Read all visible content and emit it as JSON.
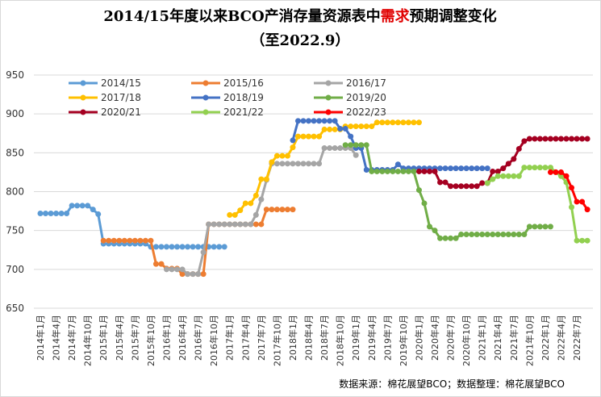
{
  "chart_data": {
    "type": "line",
    "title": {
      "before": "2014/15年度以来BCO产消存量资源表中",
      "highlight": "需求",
      "after": "预期调整变化"
    },
    "subtitle": "（至2022.9）",
    "source": "数据来源：棉花展望BCO；数据整理：棉花展望BCO",
    "highlight_color": "#e00000",
    "grid": true,
    "ylim": [
      650,
      950
    ],
    "yticks": [
      650,
      700,
      750,
      800,
      850,
      900,
      950
    ],
    "categories": [
      "2014年1月",
      null,
      null,
      "2014年4月",
      null,
      null,
      "2014年7月",
      null,
      null,
      "2014年10月",
      null,
      null,
      "2015年1月",
      null,
      null,
      "2015年4月",
      null,
      null,
      "2015年7月",
      null,
      null,
      "2015年10月",
      null,
      null,
      "2016年1月",
      null,
      null,
      "2016年4月",
      null,
      null,
      "2016年7月",
      null,
      null,
      "2016年10月",
      null,
      null,
      "2017年1月",
      null,
      null,
      "2017年4月",
      null,
      null,
      "2017年7月",
      null,
      null,
      "2017年10月",
      null,
      null,
      "2018年1月",
      null,
      null,
      "2018年4月",
      null,
      null,
      "2018年7月",
      null,
      null,
      "2018年10月",
      null,
      null,
      "2019年1月",
      null,
      null,
      "2019年4月",
      null,
      null,
      "2019年7月",
      null,
      null,
      "2019年10月",
      null,
      null,
      "2020年1月",
      null,
      null,
      "2020年4月",
      null,
      null,
      "2020年7月",
      null,
      null,
      "2020年10月",
      null,
      null,
      "2021年1月",
      null,
      null,
      "2021年4月",
      null,
      null,
      "2021年7月",
      null,
      null,
      "2021年10月",
      null,
      null,
      "2022年1月",
      null,
      null,
      "2022年4月",
      null,
      null,
      "2022年7月",
      null,
      null
    ],
    "series": [
      {
        "name": "2014/15",
        "color": "#5b9bd5",
        "values": [
          772,
          772,
          772,
          772,
          772,
          772,
          782,
          782,
          782,
          782,
          777,
          771,
          733,
          733,
          733,
          733,
          733,
          733,
          733,
          733,
          733,
          729,
          729,
          729,
          729,
          729,
          729,
          729,
          729,
          729,
          729,
          729,
          729,
          729,
          729,
          729,
          null,
          null,
          null,
          null,
          null,
          null,
          null,
          null,
          null,
          null,
          null,
          null,
          null,
          null,
          null,
          null,
          null,
          null,
          null,
          null,
          null,
          null,
          null,
          null,
          null,
          null,
          null,
          null,
          null,
          null,
          null,
          null,
          null,
          null,
          null,
          null,
          null,
          null,
          null,
          null,
          null,
          null,
          null,
          null,
          null,
          null,
          null,
          null,
          null,
          null,
          null,
          null,
          null,
          null,
          null,
          null,
          null,
          null,
          null,
          null,
          null,
          null,
          null,
          null,
          null,
          null,
          null,
          null,
          null
        ]
      },
      {
        "name": "2015/16",
        "color": "#ed7d31",
        "values": [
          null,
          null,
          null,
          null,
          null,
          null,
          null,
          null,
          null,
          null,
          null,
          null,
          737,
          737,
          737,
          737,
          737,
          737,
          737,
          737,
          737,
          737,
          707,
          707,
          701,
          701,
          701,
          694,
          694,
          694,
          694,
          694,
          758,
          758,
          758,
          758,
          758,
          758,
          758,
          758,
          758,
          758,
          758,
          777,
          777,
          777,
          777,
          777,
          777,
          null,
          null,
          null,
          null,
          null,
          null,
          null,
          null,
          null,
          null,
          null,
          null,
          null,
          null,
          null,
          null,
          null,
          null,
          null,
          null,
          null,
          null,
          null,
          null,
          null,
          null,
          null,
          null,
          null,
          null,
          null,
          null,
          null,
          null,
          null,
          null,
          null,
          null,
          null,
          null,
          null,
          null,
          null,
          null,
          null,
          null,
          null,
          null,
          null,
          null,
          null,
          null,
          null,
          null,
          null,
          null
        ]
      },
      {
        "name": "2016/17",
        "color": "#a5a5a5",
        "values": [
          null,
          null,
          null,
          null,
          null,
          null,
          null,
          null,
          null,
          null,
          null,
          null,
          null,
          null,
          null,
          null,
          null,
          null,
          null,
          null,
          null,
          null,
          null,
          null,
          700,
          700,
          700,
          700,
          694,
          694,
          694,
          722,
          758,
          758,
          758,
          758,
          758,
          758,
          758,
          758,
          758,
          770,
          790,
          815,
          836,
          836,
          836,
          836,
          836,
          836,
          836,
          836,
          836,
          836,
          856,
          856,
          856,
          856,
          856,
          856,
          847,
          null,
          null,
          null,
          null,
          null,
          null,
          null,
          null,
          null,
          null,
          null,
          null,
          null,
          null,
          null,
          null,
          null,
          null,
          null,
          null,
          null,
          null,
          null,
          null,
          null,
          null,
          null,
          null,
          null,
          null,
          null,
          null,
          null,
          null,
          null,
          null,
          null,
          null,
          null,
          null,
          null,
          null,
          null,
          null
        ]
      },
      {
        "name": "2017/18",
        "color": "#ffc000",
        "values": [
          null,
          null,
          null,
          null,
          null,
          null,
          null,
          null,
          null,
          null,
          null,
          null,
          null,
          null,
          null,
          null,
          null,
          null,
          null,
          null,
          null,
          null,
          null,
          null,
          null,
          null,
          null,
          null,
          null,
          null,
          null,
          null,
          null,
          null,
          null,
          null,
          770,
          770,
          776,
          785,
          785,
          795,
          816,
          816,
          838,
          846,
          846,
          846,
          857,
          871,
          871,
          871,
          871,
          871,
          880,
          880,
          880,
          880,
          884,
          884,
          884,
          884,
          884,
          884,
          889,
          889,
          889,
          889,
          889,
          889,
          889,
          889,
          889,
          null,
          null,
          null,
          null,
          null,
          null,
          null,
          null,
          null,
          null,
          null,
          null,
          null,
          null,
          null,
          null,
          null,
          null,
          null,
          null,
          null,
          null,
          null,
          null,
          null,
          null,
          null,
          null,
          null,
          null,
          null,
          null
        ]
      },
      {
        "name": "2018/19",
        "color": "#4472c4",
        "values": [
          null,
          null,
          null,
          null,
          null,
          null,
          null,
          null,
          null,
          null,
          null,
          null,
          null,
          null,
          null,
          null,
          null,
          null,
          null,
          null,
          null,
          null,
          null,
          null,
          null,
          null,
          null,
          null,
          null,
          null,
          null,
          null,
          null,
          null,
          null,
          null,
          null,
          null,
          null,
          null,
          null,
          null,
          null,
          null,
          null,
          null,
          null,
          null,
          866,
          891,
          891,
          891,
          891,
          891,
          891,
          891,
          891,
          881,
          881,
          871,
          856,
          856,
          828,
          828,
          828,
          828,
          828,
          828,
          835,
          830,
          830,
          830,
          830,
          830,
          830,
          830,
          830,
          830,
          830,
          830,
          830,
          830,
          830,
          830,
          830,
          830,
          null,
          null,
          null,
          null,
          null,
          null,
          null,
          null,
          null,
          null,
          null,
          null,
          null,
          null,
          null,
          null,
          null,
          null,
          null
        ]
      },
      {
        "name": "2019/20",
        "color": "#70ad47",
        "values": [
          null,
          null,
          null,
          null,
          null,
          null,
          null,
          null,
          null,
          null,
          null,
          null,
          null,
          null,
          null,
          null,
          null,
          null,
          null,
          null,
          null,
          null,
          null,
          null,
          null,
          null,
          null,
          null,
          null,
          null,
          null,
          null,
          null,
          null,
          null,
          null,
          null,
          null,
          null,
          null,
          null,
          null,
          null,
          null,
          null,
          null,
          null,
          null,
          null,
          null,
          null,
          null,
          null,
          null,
          null,
          null,
          null,
          null,
          860,
          860,
          860,
          860,
          860,
          826,
          826,
          826,
          826,
          826,
          826,
          826,
          826,
          826,
          802,
          785,
          755,
          750,
          740,
          740,
          740,
          740,
          745,
          745,
          745,
          745,
          745,
          745,
          745,
          745,
          745,
          745,
          745,
          745,
          745,
          755,
          755,
          755,
          755,
          755,
          null,
          null,
          null,
          null,
          null,
          null,
          null
        ]
      },
      {
        "name": "2020/21",
        "color": "#a50021",
        "values": [
          null,
          null,
          null,
          null,
          null,
          null,
          null,
          null,
          null,
          null,
          null,
          null,
          null,
          null,
          null,
          null,
          null,
          null,
          null,
          null,
          null,
          null,
          null,
          null,
          null,
          null,
          null,
          null,
          null,
          null,
          null,
          null,
          null,
          null,
          null,
          null,
          null,
          null,
          null,
          null,
          null,
          null,
          null,
          null,
          null,
          null,
          null,
          null,
          null,
          null,
          null,
          null,
          null,
          null,
          null,
          null,
          null,
          null,
          null,
          null,
          null,
          null,
          null,
          null,
          null,
          null,
          null,
          null,
          null,
          null,
          null,
          null,
          826,
          826,
          826,
          826,
          812,
          812,
          807,
          807,
          807,
          807,
          807,
          807,
          811,
          811,
          826,
          826,
          830,
          836,
          842,
          855,
          865,
          868,
          868,
          868,
          868,
          868,
          868,
          868,
          868,
          868,
          868,
          868,
          868
        ]
      },
      {
        "name": "2021/22",
        "color": "#92d050",
        "values": [
          null,
          null,
          null,
          null,
          null,
          null,
          null,
          null,
          null,
          null,
          null,
          null,
          null,
          null,
          null,
          null,
          null,
          null,
          null,
          null,
          null,
          null,
          null,
          null,
          null,
          null,
          null,
          null,
          null,
          null,
          null,
          null,
          null,
          null,
          null,
          null,
          null,
          null,
          null,
          null,
          null,
          null,
          null,
          null,
          null,
          null,
          null,
          null,
          null,
          null,
          null,
          null,
          null,
          null,
          null,
          null,
          null,
          null,
          null,
          null,
          null,
          null,
          null,
          null,
          null,
          null,
          null,
          null,
          null,
          null,
          null,
          null,
          null,
          null,
          null,
          null,
          null,
          null,
          null,
          null,
          null,
          null,
          null,
          null,
          null,
          811,
          816,
          820,
          820,
          820,
          820,
          820,
          831,
          831,
          831,
          831,
          831,
          831,
          825,
          820,
          812,
          780,
          737,
          737,
          737
        ]
      },
      {
        "name": "2022/23",
        "color": "#ff0000",
        "values": [
          null,
          null,
          null,
          null,
          null,
          null,
          null,
          null,
          null,
          null,
          null,
          null,
          null,
          null,
          null,
          null,
          null,
          null,
          null,
          null,
          null,
          null,
          null,
          null,
          null,
          null,
          null,
          null,
          null,
          null,
          null,
          null,
          null,
          null,
          null,
          null,
          null,
          null,
          null,
          null,
          null,
          null,
          null,
          null,
          null,
          null,
          null,
          null,
          null,
          null,
          null,
          null,
          null,
          null,
          null,
          null,
          null,
          null,
          null,
          null,
          null,
          null,
          null,
          null,
          null,
          null,
          null,
          null,
          null,
          null,
          null,
          null,
          null,
          null,
          null,
          null,
          null,
          null,
          null,
          null,
          null,
          null,
          null,
          null,
          null,
          null,
          null,
          null,
          null,
          null,
          null,
          null,
          null,
          null,
          null,
          null,
          null,
          825,
          825,
          825,
          820,
          805,
          787,
          787,
          777
        ]
      }
    ]
  }
}
